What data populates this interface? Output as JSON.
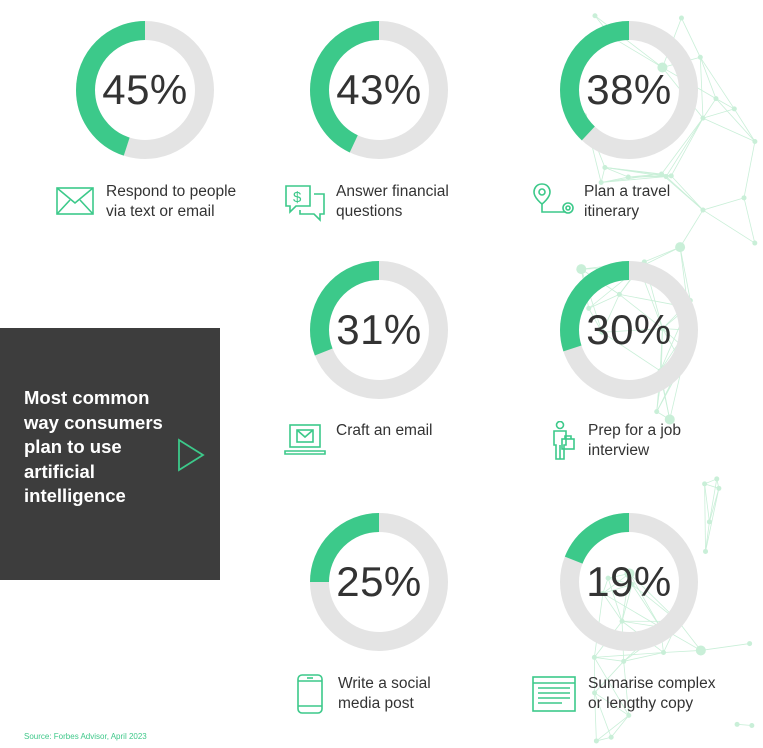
{
  "chart_data": {
    "type": "donut",
    "title": "Most common way consumers plan to use artificial intelligence",
    "values": [
      45,
      43,
      38,
      31,
      30,
      25,
      19
    ],
    "unit": "%",
    "categories": [
      "Respond to people via text or email",
      "Answer financial questions",
      "Plan a travel itinerary",
      "Craft an email",
      "Prep for a job interview",
      "Write a social media post",
      "Sumarise complex or lengthy copy"
    ],
    "donuts": [
      {
        "pct": "45%",
        "value": 45,
        "label": "Respond to people\nvia text or email",
        "icon": "envelope-icon"
      },
      {
        "pct": "43%",
        "value": 43,
        "label": "Answer financial\nquestions",
        "icon": "money-chat-icon"
      },
      {
        "pct": "38%",
        "value": 38,
        "label": "Plan a travel\nitinerary",
        "icon": "map-route-icon"
      },
      {
        "pct": "31%",
        "value": 31,
        "label": "Craft an email",
        "icon": "laptop-email-icon"
      },
      {
        "pct": "30%",
        "value": 30,
        "label": "Prep for a job\ninterview",
        "icon": "person-briefcase-icon"
      },
      {
        "pct": "25%",
        "value": 25,
        "label": "Write a social\nmedia post",
        "icon": "smartphone-icon"
      },
      {
        "pct": "19%",
        "value": 19,
        "label": "Sumarise complex\nor lengthy copy",
        "icon": "document-icon"
      }
    ]
  },
  "panel": {
    "title": "Most common way consumers plan to use artificial intelligence"
  },
  "source": "Source: Forbes Advisor, April 2023",
  "colors": {
    "accent": "#3cc98a",
    "track": "#e4e4e4",
    "panel": "#3d3d3d",
    "text": "#333333",
    "network": "#c9efd8"
  }
}
